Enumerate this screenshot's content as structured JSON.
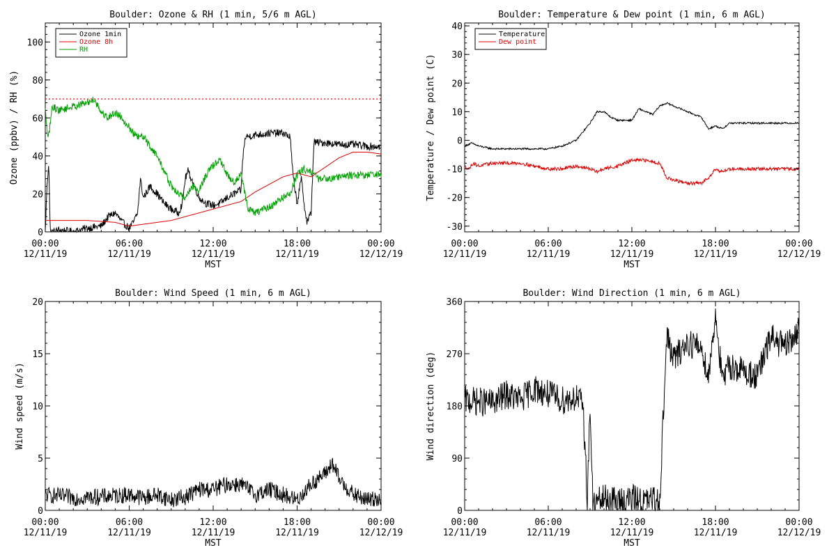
{
  "chart_data": [
    {
      "type": "line",
      "title": "Boulder: Ozone & RH (1 min, 5/6 m AGL)",
      "xlabel": "MST",
      "ylabel": "Ozone (ppbv) / RH (%)",
      "xlim": [
        0,
        24
      ],
      "ylim": [
        0,
        110
      ],
      "x_ticks": [
        {
          "value": 0,
          "line1": "00:00",
          "line2": "12/11/19"
        },
        {
          "value": 6,
          "line1": "06:00",
          "line2": "12/11/19"
        },
        {
          "value": 12,
          "line1": "12:00",
          "line2": "12/11/19"
        },
        {
          "value": 18,
          "line1": "18:00",
          "line2": "12/11/19"
        },
        {
          "value": 24,
          "line1": "00:00",
          "line2": "12/12/19"
        }
      ],
      "y_ticks": [
        0,
        20,
        40,
        60,
        80,
        100
      ],
      "legend": "top-left",
      "reference_line": {
        "y": 70,
        "color": "#ff0000",
        "style": "dotted"
      },
      "series": [
        {
          "name": "Ozone 1min",
          "color": "#000000",
          "noise": 2,
          "points": [
            [
              0,
              0
            ],
            [
              0.1,
              20
            ],
            [
              0.25,
              38
            ],
            [
              0.35,
              0
            ],
            [
              0.6,
              0
            ],
            [
              1,
              1
            ],
            [
              2,
              0
            ],
            [
              3,
              2
            ],
            [
              4,
              3
            ],
            [
              4.5,
              8
            ],
            [
              5,
              10
            ],
            [
              5.5,
              5
            ],
            [
              6,
              2
            ],
            [
              6.3,
              5
            ],
            [
              6.6,
              10
            ],
            [
              6.8,
              28
            ],
            [
              7,
              18
            ],
            [
              7.5,
              24
            ],
            [
              8,
              20
            ],
            [
              8.5,
              15
            ],
            [
              9,
              12
            ],
            [
              9.5,
              10
            ],
            [
              9.8,
              15
            ],
            [
              10,
              28
            ],
            [
              10.2,
              32
            ],
            [
              10.5,
              27
            ],
            [
              11,
              18
            ],
            [
              11.5,
              15
            ],
            [
              12,
              14
            ],
            [
              12.5,
              15
            ],
            [
              13,
              18
            ],
            [
              13.5,
              20
            ],
            [
              14,
              22
            ],
            [
              14.1,
              38
            ],
            [
              14.3,
              50
            ],
            [
              15,
              51
            ],
            [
              16,
              52
            ],
            [
              17,
              52
            ],
            [
              17.5,
              50
            ],
            [
              17.7,
              30
            ],
            [
              18,
              15
            ],
            [
              18.3,
              28
            ],
            [
              18.5,
              15
            ],
            [
              18.7,
              5
            ],
            [
              19,
              10
            ],
            [
              19.2,
              47
            ],
            [
              20,
              47
            ],
            [
              21,
              46
            ],
            [
              22,
              46
            ],
            [
              23,
              45
            ],
            [
              24,
              45
            ]
          ]
        },
        {
          "name": "Ozone 8h",
          "color": "#dd0000",
          "noise": 0,
          "points": [
            [
              0,
              6
            ],
            [
              3,
              6
            ],
            [
              5,
              5
            ],
            [
              6,
              3
            ],
            [
              7,
              4
            ],
            [
              8,
              5
            ],
            [
              9,
              6
            ],
            [
              10,
              8
            ],
            [
              11,
              10
            ],
            [
              12,
              12
            ],
            [
              13,
              14
            ],
            [
              14,
              16
            ],
            [
              15,
              21
            ],
            [
              16,
              25
            ],
            [
              17,
              29
            ],
            [
              18,
              31
            ],
            [
              19,
              29
            ],
            [
              20,
              34
            ],
            [
              21,
              39
            ],
            [
              22,
              42
            ],
            [
              23,
              42
            ],
            [
              24,
              41
            ]
          ]
        },
        {
          "name": "RH",
          "color": "#00a000",
          "noise": 2,
          "points": [
            [
              0,
              64
            ],
            [
              0.2,
              48
            ],
            [
              0.5,
              66
            ],
            [
              1,
              64
            ],
            [
              2,
              66
            ],
            [
              3,
              68
            ],
            [
              3.5,
              70
            ],
            [
              4,
              63
            ],
            [
              4.5,
              60
            ],
            [
              5,
              63
            ],
            [
              5.5,
              60
            ],
            [
              6,
              55
            ],
            [
              6.5,
              50
            ],
            [
              7,
              50
            ],
            [
              7.5,
              45
            ],
            [
              8,
              40
            ],
            [
              8.5,
              32
            ],
            [
              9,
              24
            ],
            [
              9.5,
              20
            ],
            [
              10,
              18
            ],
            [
              10.5,
              24
            ],
            [
              11,
              22
            ],
            [
              11.5,
              30
            ],
            [
              12,
              35
            ],
            [
              12.5,
              38
            ],
            [
              13,
              30
            ],
            [
              13.5,
              26
            ],
            [
              14,
              30
            ],
            [
              14.5,
              12
            ],
            [
              15,
              10
            ],
            [
              16,
              13
            ],
            [
              17,
              18
            ],
            [
              17.5,
              20
            ],
            [
              18,
              30
            ],
            [
              18.5,
              33
            ],
            [
              19,
              32
            ],
            [
              19.5,
              28
            ],
            [
              20,
              28
            ],
            [
              22,
              30
            ],
            [
              24,
              30
            ]
          ]
        }
      ]
    },
    {
      "type": "line",
      "title": "Boulder: Temperature & Dew point (1 min, 6 m AGL)",
      "xlabel": "MST",
      "ylabel": "Temperature / Dew point (C)",
      "xlim": [
        0,
        24
      ],
      "ylim": [
        -32,
        41
      ],
      "x_ticks": [
        {
          "value": 0,
          "line1": "00:00",
          "line2": "12/11/19"
        },
        {
          "value": 6,
          "line1": "06:00",
          "line2": "12/11/19"
        },
        {
          "value": 12,
          "line1": "12:00",
          "line2": "12/11/19"
        },
        {
          "value": 18,
          "line1": "18:00",
          "line2": "12/11/19"
        },
        {
          "value": 24,
          "line1": "00:00",
          "line2": "12/12/19"
        }
      ],
      "y_ticks": [
        -30,
        -20,
        -10,
        0,
        10,
        20,
        30,
        40
      ],
      "legend": "top-left",
      "series": [
        {
          "name": "Temperature",
          "color": "#000000",
          "noise": 0.3,
          "points": [
            [
              0,
              -2
            ],
            [
              0.5,
              -1
            ],
            [
              1,
              -2
            ],
            [
              2,
              -3
            ],
            [
              3,
              -3
            ],
            [
              4,
              -3
            ],
            [
              5,
              -3
            ],
            [
              6,
              -3
            ],
            [
              7,
              -2
            ],
            [
              8,
              0
            ],
            [
              9,
              6
            ],
            [
              9.5,
              10
            ],
            [
              10,
              10
            ],
            [
              10.5,
              8
            ],
            [
              11,
              7
            ],
            [
              12,
              7
            ],
            [
              12.5,
              11
            ],
            [
              13,
              10
            ],
            [
              13.5,
              9
            ],
            [
              14,
              12
            ],
            [
              14.5,
              13
            ],
            [
              15,
              12
            ],
            [
              16,
              10
            ],
            [
              17,
              8
            ],
            [
              17.5,
              4
            ],
            [
              18,
              5
            ],
            [
              18.5,
              4
            ],
            [
              19,
              6
            ],
            [
              20,
              6
            ],
            [
              22,
              6
            ],
            [
              24,
              6
            ]
          ]
        },
        {
          "name": "Dew point",
          "color": "#dd0000",
          "noise": 0.6,
          "points": [
            [
              0,
              -9
            ],
            [
              0.3,
              -10
            ],
            [
              0.6,
              -8
            ],
            [
              1,
              -9
            ],
            [
              2,
              -8
            ],
            [
              3,
              -8
            ],
            [
              4,
              -8
            ],
            [
              5,
              -9
            ],
            [
              6,
              -10
            ],
            [
              7,
              -10
            ],
            [
              8,
              -9
            ],
            [
              9,
              -10
            ],
            [
              9.5,
              -11
            ],
            [
              10,
              -10
            ],
            [
              11,
              -9
            ],
            [
              12,
              -7
            ],
            [
              13,
              -7
            ],
            [
              14,
              -8
            ],
            [
              14.5,
              -13
            ],
            [
              15,
              -14
            ],
            [
              16,
              -15
            ],
            [
              17,
              -15
            ],
            [
              17.5,
              -13
            ],
            [
              18,
              -10
            ],
            [
              18.5,
              -11
            ],
            [
              19,
              -10
            ],
            [
              20,
              -10
            ],
            [
              22,
              -10
            ],
            [
              24,
              -10
            ]
          ]
        }
      ]
    },
    {
      "type": "line",
      "title": "Boulder: Wind Speed (1 min, 6 m AGL)",
      "xlabel": "MST",
      "ylabel": "Wind speed (m/s)",
      "xlim": [
        0,
        24
      ],
      "ylim": [
        0,
        20
      ],
      "x_ticks": [
        {
          "value": 0,
          "line1": "00:00",
          "line2": "12/11/19"
        },
        {
          "value": 6,
          "line1": "06:00",
          "line2": "12/11/19"
        },
        {
          "value": 12,
          "line1": "12:00",
          "line2": "12/11/19"
        },
        {
          "value": 18,
          "line1": "18:00",
          "line2": "12/11/19"
        },
        {
          "value": 24,
          "line1": "00:00",
          "line2": "12/12/19"
        }
      ],
      "y_ticks": [
        0,
        5,
        10,
        15,
        20
      ],
      "legend": "none",
      "series": [
        {
          "name": "",
          "color": "#000000",
          "noise": 0.8,
          "points": [
            [
              0,
              1.5
            ],
            [
              2,
              1.2
            ],
            [
              4,
              1.3
            ],
            [
              6,
              1.5
            ],
            [
              7,
              1.2
            ],
            [
              8,
              1.5
            ],
            [
              9,
              1.0
            ],
            [
              10,
              1.3
            ],
            [
              11,
              2.0
            ],
            [
              12,
              2.0
            ],
            [
              13,
              2.5
            ],
            [
              14,
              2.5
            ],
            [
              15,
              1.5
            ],
            [
              16,
              2.0
            ],
            [
              17,
              1.5
            ],
            [
              18,
              1.0
            ],
            [
              19,
              2.5
            ],
            [
              20,
              3.5
            ],
            [
              20.5,
              4.5
            ],
            [
              21,
              3
            ],
            [
              22,
              1.5
            ],
            [
              23,
              1.0
            ],
            [
              24,
              1.2
            ]
          ]
        }
      ]
    },
    {
      "type": "line",
      "title": "Boulder: Wind Direction (1 min, 6 m AGL)",
      "xlabel": "MST",
      "ylabel": "Wind direction (deg)",
      "xlim": [
        0,
        24
      ],
      "ylim": [
        0,
        360
      ],
      "x_ticks": [
        {
          "value": 0,
          "line1": "00:00",
          "line2": "12/11/19"
        },
        {
          "value": 6,
          "line1": "06:00",
          "line2": "12/11/19"
        },
        {
          "value": 12,
          "line1": "12:00",
          "line2": "12/11/19"
        },
        {
          "value": 18,
          "line1": "18:00",
          "line2": "12/11/19"
        },
        {
          "value": 24,
          "line1": "00:00",
          "line2": "12/12/19"
        }
      ],
      "y_ticks": [
        0,
        90,
        180,
        270,
        360
      ],
      "legend": "none",
      "series": [
        {
          "name": "",
          "color": "#000000",
          "noise": 25,
          "points": [
            [
              0,
              190
            ],
            [
              2,
              185
            ],
            [
              3,
              200
            ],
            [
              4,
              190
            ],
            [
              5,
              210
            ],
            [
              6,
              200
            ],
            [
              7,
              190
            ],
            [
              8,
              195
            ],
            [
              8.5,
              180
            ],
            [
              8.8,
              20
            ],
            [
              9,
              180
            ],
            [
              9.2,
              10
            ],
            [
              10,
              20
            ],
            [
              11,
              15
            ],
            [
              12,
              20
            ],
            [
              13,
              15
            ],
            [
              14,
              20
            ],
            [
              14.5,
              300
            ],
            [
              15,
              260
            ],
            [
              16,
              290
            ],
            [
              17,
              280
            ],
            [
              17.5,
              230
            ],
            [
              18,
              340
            ],
            [
              18.5,
              220
            ],
            [
              19,
              250
            ],
            [
              20,
              240
            ],
            [
              21,
              230
            ],
            [
              22,
              300
            ],
            [
              23,
              280
            ],
            [
              24,
              310
            ]
          ]
        }
      ]
    }
  ]
}
